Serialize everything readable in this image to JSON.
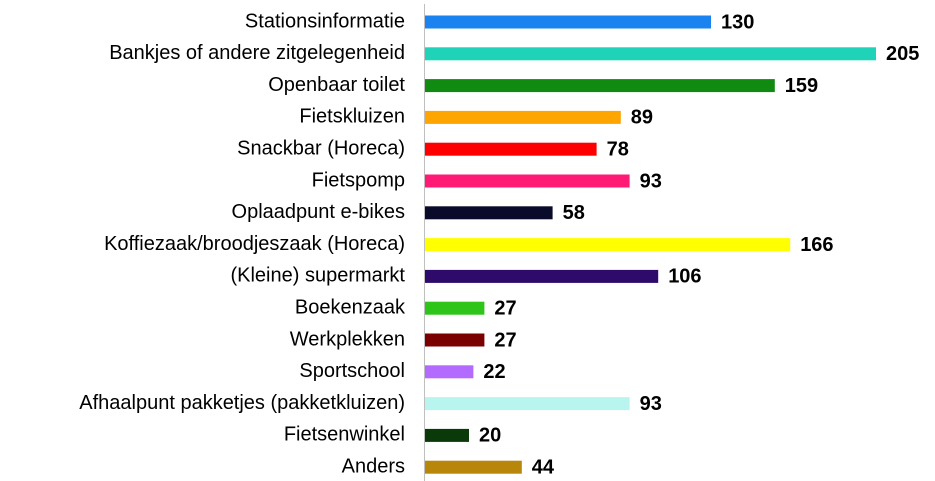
{
  "chart_data": {
    "type": "bar",
    "orientation": "horizontal",
    "categories": [
      "Stationsinformatie",
      "Bankjes of andere zitgelegenheid",
      "Openbaar toilet",
      "Fietskluizen",
      "Snackbar (Horeca)",
      "Fietspomp",
      "Oplaadpunt e-bikes",
      "Koffiezaak/broodjeszaak (Horeca)",
      "(Kleine) supermarkt",
      "Boekenzaak",
      "Werkplekken",
      "Sportschool",
      "Afhaalpunt pakketjes (pakketkluizen)",
      "Fietsenwinkel",
      "Anders"
    ],
    "values": [
      130,
      205,
      159,
      89,
      78,
      93,
      58,
      166,
      106,
      27,
      27,
      22,
      93,
      20,
      44
    ],
    "colors": [
      "#1a83f0",
      "#1fd3b8",
      "#118a11",
      "#ffa500",
      "#ff0000",
      "#ff1a75",
      "#0a0a2a",
      "#ffff00",
      "#2e0a6b",
      "#2ec41a",
      "#7a0000",
      "#b36bff",
      "#b8f5ee",
      "#0a3a0a",
      "#b8860b"
    ]
  }
}
